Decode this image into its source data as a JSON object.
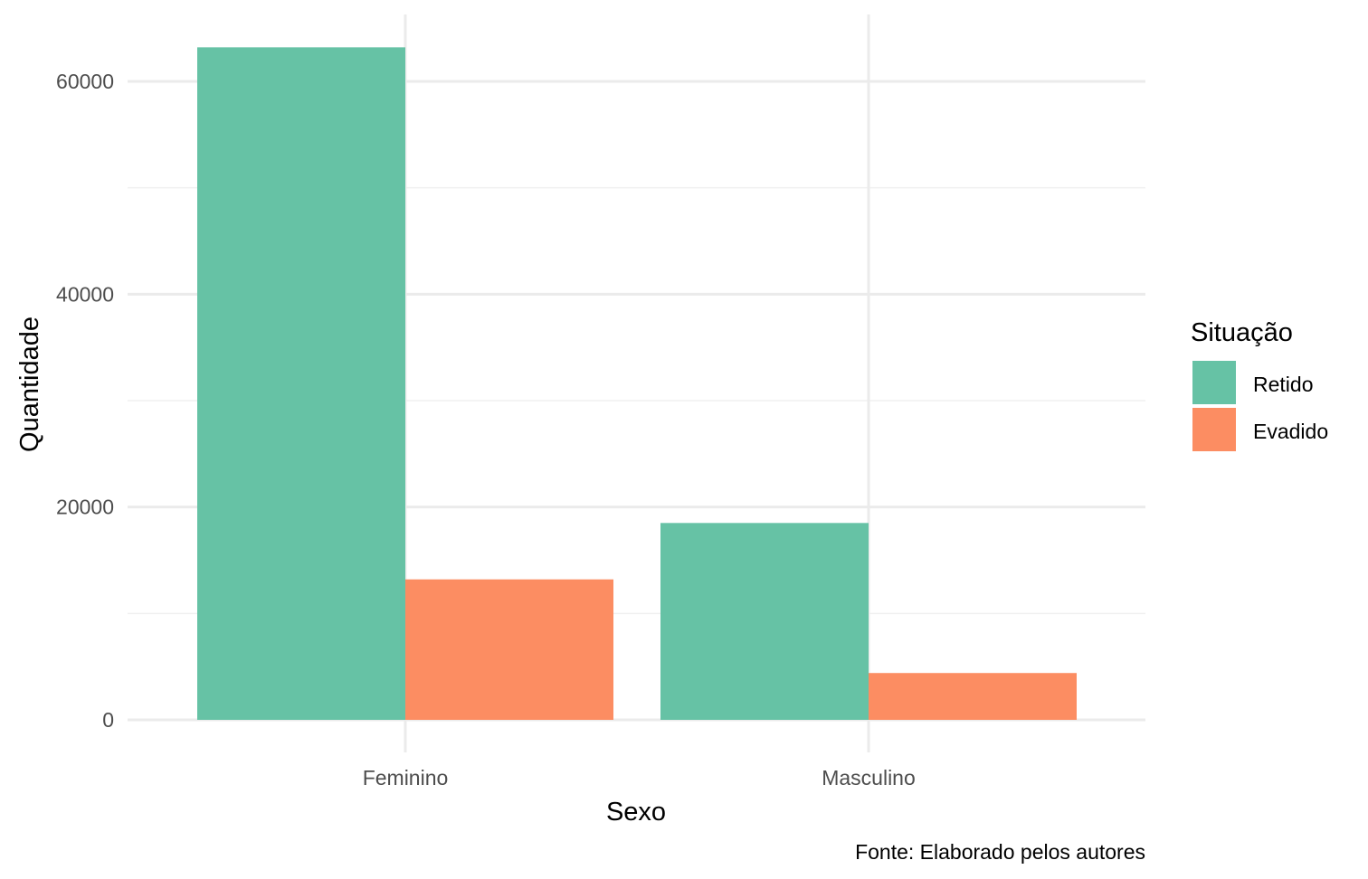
{
  "chart_data": {
    "type": "bar",
    "categories": [
      "Feminino",
      "Masculino"
    ],
    "series": [
      {
        "name": "Retido",
        "color": "#66C2A5",
        "values": [
          63200,
          18500
        ]
      },
      {
        "name": "Evadido",
        "color": "#FC8D62",
        "values": [
          13200,
          4400
        ]
      }
    ],
    "xlabel": "Sexo",
    "ylabel": "Quantidade",
    "ylim": [
      0,
      66500
    ],
    "yticks": [
      0,
      20000,
      40000,
      60000
    ],
    "ytick_labels": [
      "0",
      "20000",
      "40000",
      "60000"
    ],
    "grid": true,
    "legend": {
      "title": "Situação",
      "position": "right"
    },
    "caption": "Fonte: Elaborado pelos autores"
  }
}
